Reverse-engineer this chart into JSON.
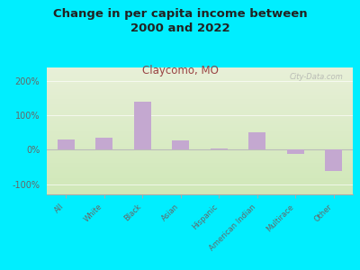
{
  "title": "Change in per capita income between\n2000 and 2022",
  "subtitle": "Claycomo, MO",
  "categories": [
    "All",
    "White",
    "Black",
    "Asian",
    "Hispanic",
    "American Indian",
    "Multirace",
    "Other"
  ],
  "values": [
    30,
    35,
    140,
    28,
    5,
    50,
    -13,
    -62
  ],
  "bar_color": "#c4a8d0",
  "background_outer": "#00eeff",
  "title_color": "#222222",
  "subtitle_color": "#994444",
  "tick_label_color": "#666666",
  "ylim": [
    -130,
    240
  ],
  "yticks": [
    -100,
    0,
    100,
    200
  ],
  "watermark": "City-Data.com"
}
